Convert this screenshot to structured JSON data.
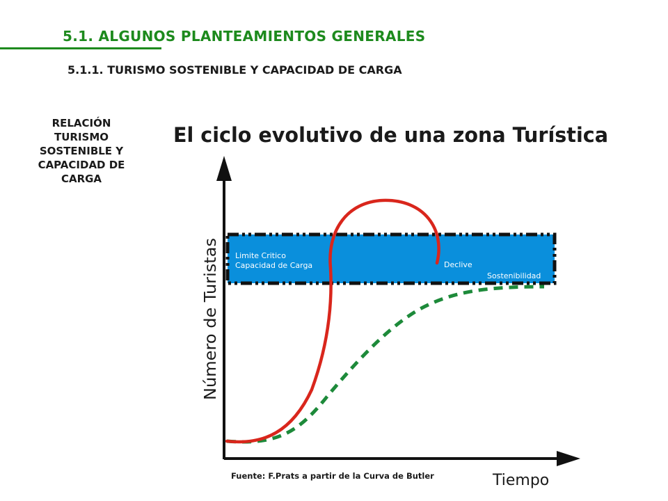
{
  "header": {
    "section_title": "5.1. ALGUNOS PLANTEAMIENTOS GENERALES",
    "subsection_title": "5.1.1. TURISMO SOSTENIBLE Y CAPACIDAD DE CARGA"
  },
  "side_note": {
    "lines": [
      "RELACIÓN",
      "TURISMO",
      "SOSTENIBLE Y",
      "CAPACIDAD DE",
      "CARGA"
    ]
  },
  "diagram": {
    "title": "El ciclo evolutivo de una zona Turística",
    "y_axis_label": "Número de Turistas",
    "x_axis_label": "Tiempo",
    "band_label_line1": "Limite Critico",
    "band_label_line2": "Capacidad de Carga",
    "decline_label": "Declive",
    "sustainability_label": "Sostenibilidad",
    "source": "Fuente: F.Prats a partir de la Curva de Butler",
    "colors": {
      "band": "#0a8fdc",
      "unsustainable_curve": "#d9261c",
      "sustainable_curve": "#1d8a3a",
      "title_accent": "#1d8a1d"
    }
  }
}
